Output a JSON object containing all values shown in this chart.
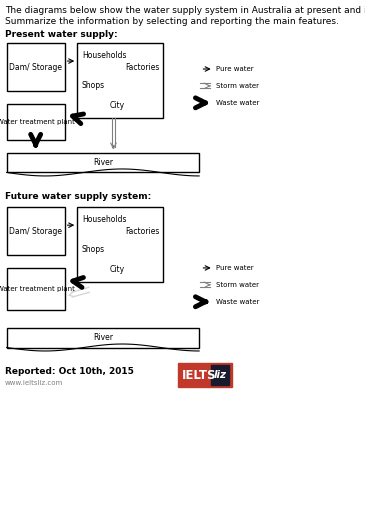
{
  "title_line1": "The diagrams below show the water supply system in Australia at present and in future.",
  "title_line2": "Summarize the information by selecting and reporting the main features.",
  "section1_title": "Present water supply:",
  "section2_title": "Future water supply system:",
  "footer_text": "Reported: Oct 10th, 2015",
  "footer_url": "www.ieltsliz.com",
  "bg_color": "#ffffff",
  "box_color": "#000000"
}
